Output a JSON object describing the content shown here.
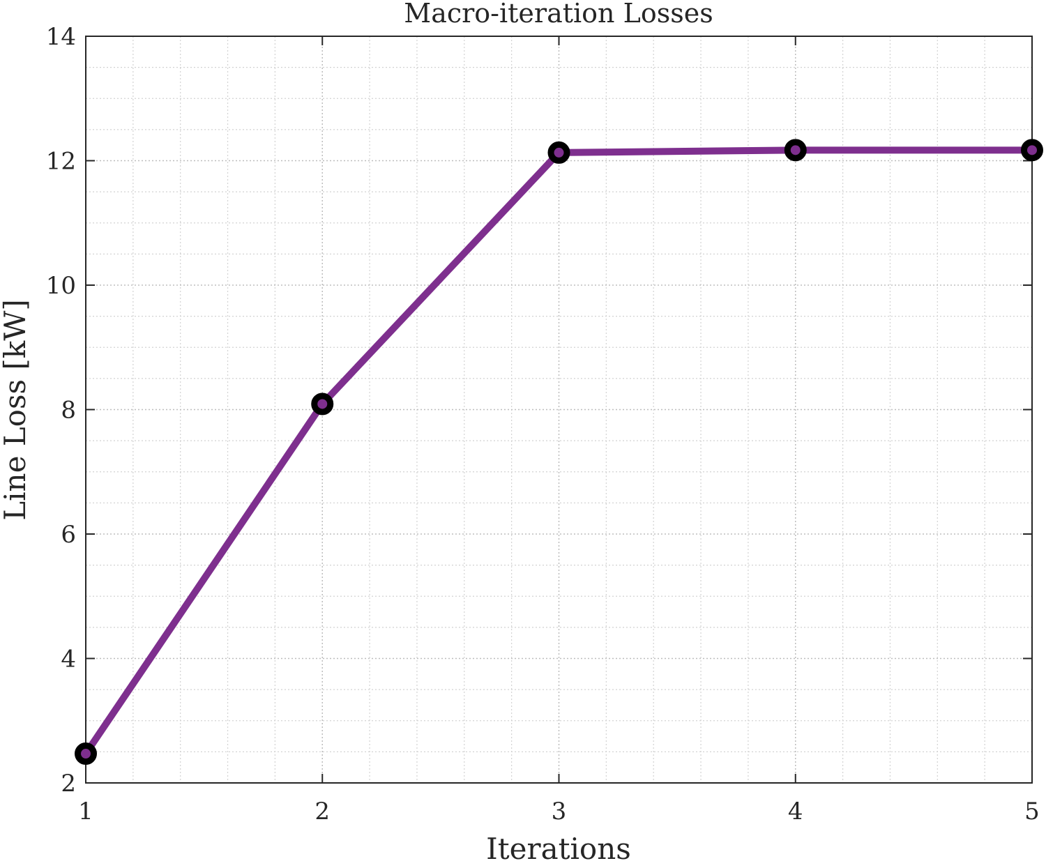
{
  "chart_data": {
    "type": "line",
    "title": "Macro-iteration Losses",
    "xlabel": "Iterations",
    "ylabel": "Line Loss [kW]",
    "xlim": [
      1,
      5
    ],
    "ylim": [
      2,
      14
    ],
    "x_ticks": [
      "1",
      "2",
      "3",
      "4",
      "5"
    ],
    "y_ticks": [
      "2",
      "4",
      "6",
      "8",
      "10",
      "12",
      "14"
    ],
    "grid": true,
    "minor_grid": true,
    "series": [
      {
        "x": [
          1,
          2,
          3,
          4,
          5
        ],
        "y": [
          2.47,
          8.09,
          12.13,
          12.17,
          12.17
        ],
        "color": "#7e2f8e",
        "marker_edge_color": "#000000"
      }
    ]
  }
}
